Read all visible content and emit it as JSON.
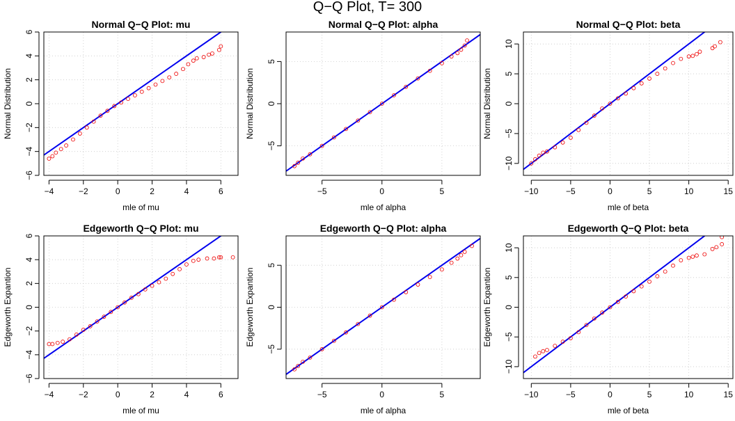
{
  "title": "Q−Q Plot, T= 300",
  "colors": {
    "points": "#ee0000",
    "reference_line": "#0000ee",
    "grid": "#c8c8c8"
  },
  "chart_data": [
    {
      "type": "scatter",
      "title": "Normal Q−Q Plot: mu",
      "xlabel": "mle of mu",
      "ylabel": "Normal Distribution",
      "xlim": [
        -4.3,
        7.0
      ],
      "ylim": [
        -6.0,
        6.0
      ],
      "xticks": [
        -4,
        -2,
        0,
        2,
        4,
        6
      ],
      "yticks": [
        -6,
        -4,
        -2,
        0,
        2,
        4,
        6
      ],
      "grid": true,
      "reference_line": {
        "slope": 1,
        "intercept": 0
      },
      "points": [
        [
          -4.0,
          -4.6
        ],
        [
          -3.8,
          -4.4
        ],
        [
          -3.6,
          -4.1
        ],
        [
          -3.3,
          -3.8
        ],
        [
          -3.0,
          -3.5
        ],
        [
          -2.6,
          -3.0
        ],
        [
          -2.2,
          -2.5
        ],
        [
          -1.8,
          -2.0
        ],
        [
          -1.4,
          -1.5
        ],
        [
          -1.0,
          -1.0
        ],
        [
          -0.6,
          -0.6
        ],
        [
          -0.2,
          -0.2
        ],
        [
          0.2,
          0.1
        ],
        [
          0.6,
          0.4
        ],
        [
          1.0,
          0.7
        ],
        [
          1.4,
          1.0
        ],
        [
          1.8,
          1.3
        ],
        [
          2.2,
          1.6
        ],
        [
          2.6,
          1.9
        ],
        [
          3.0,
          2.2
        ],
        [
          3.4,
          2.5
        ],
        [
          3.8,
          2.9
        ],
        [
          4.1,
          3.3
        ],
        [
          4.4,
          3.6
        ],
        [
          4.6,
          3.8
        ],
        [
          5.0,
          3.9
        ],
        [
          5.3,
          4.1
        ],
        [
          5.5,
          4.2
        ],
        [
          5.9,
          4.5
        ],
        [
          6.0,
          4.8
        ]
      ]
    },
    {
      "type": "scatter",
      "title": "Normal Q−Q Plot: alpha",
      "xlabel": "mle of alpha",
      "ylabel": "Normal Distribution",
      "xlim": [
        -8.0,
        8.2
      ],
      "ylim": [
        -8.5,
        8.5
      ],
      "xticks": [
        -5,
        0,
        5
      ],
      "yticks": [
        -5,
        0,
        5
      ],
      "grid": true,
      "reference_line": {
        "slope": 1,
        "intercept": 0
      },
      "points": [
        [
          -7.3,
          -7.4
        ],
        [
          -7.0,
          -7.0
        ],
        [
          -6.6,
          -6.5
        ],
        [
          -6.0,
          -6.0
        ],
        [
          -5.0,
          -5.0
        ],
        [
          -4.0,
          -4.0
        ],
        [
          -3.0,
          -3.0
        ],
        [
          -2.0,
          -2.0
        ],
        [
          -1.0,
          -1.0
        ],
        [
          0.0,
          0.0
        ],
        [
          1.0,
          1.0
        ],
        [
          2.0,
          2.0
        ],
        [
          3.0,
          3.0
        ],
        [
          4.0,
          3.9
        ],
        [
          5.0,
          4.8
        ],
        [
          5.8,
          5.6
        ],
        [
          6.3,
          6.0
        ],
        [
          6.6,
          6.4
        ],
        [
          6.9,
          6.9
        ],
        [
          7.1,
          7.5
        ]
      ]
    },
    {
      "type": "scatter",
      "title": "Normal Q−Q Plot: beta",
      "xlabel": "mle of beta",
      "ylabel": "Normal Distribution",
      "xlim": [
        -11.0,
        15.6
      ],
      "ylim": [
        -12.0,
        12.0
      ],
      "xticks": [
        -10,
        -5,
        0,
        5,
        10,
        15
      ],
      "yticks": [
        -10,
        -5,
        0,
        5,
        10
      ],
      "grid": true,
      "reference_line": {
        "slope": 1,
        "intercept": 0
      },
      "points": [
        [
          -10.0,
          -10.0
        ],
        [
          -9.5,
          -9.3
        ],
        [
          -9.0,
          -8.7
        ],
        [
          -8.5,
          -8.2
        ],
        [
          -8.0,
          -8.0
        ],
        [
          -7.0,
          -7.3
        ],
        [
          -6.0,
          -6.5
        ],
        [
          -5.0,
          -5.7
        ],
        [
          -4.0,
          -4.4
        ],
        [
          -3.0,
          -3.2
        ],
        [
          -2.0,
          -2.0
        ],
        [
          -1.0,
          -0.8
        ],
        [
          0.0,
          0.0
        ],
        [
          1.0,
          0.9
        ],
        [
          2.0,
          1.7
        ],
        [
          3.0,
          2.6
        ],
        [
          4.0,
          3.4
        ],
        [
          5.0,
          4.2
        ],
        [
          6.0,
          5.0
        ],
        [
          7.0,
          5.9
        ],
        [
          8.0,
          6.8
        ],
        [
          9.0,
          7.5
        ],
        [
          10.0,
          7.9
        ],
        [
          10.5,
          8.0
        ],
        [
          11.0,
          8.3
        ],
        [
          11.4,
          8.7
        ],
        [
          13.0,
          9.3
        ],
        [
          13.3,
          9.6
        ],
        [
          14.0,
          10.3
        ]
      ]
    },
    {
      "type": "scatter",
      "title": "Edgeworth Q−Q Plot: mu",
      "xlabel": "mle of mu",
      "ylabel": "Edgeworth Expantion",
      "xlim": [
        -4.3,
        7.0
      ],
      "ylim": [
        -6.0,
        6.0
      ],
      "xticks": [
        -4,
        -2,
        0,
        2,
        4,
        6
      ],
      "yticks": [
        -6,
        -4,
        -2,
        0,
        2,
        4,
        6
      ],
      "grid": true,
      "reference_line": {
        "slope": 1,
        "intercept": 0
      },
      "points": [
        [
          -4.0,
          -3.1
        ],
        [
          -3.8,
          -3.1
        ],
        [
          -3.5,
          -3.0
        ],
        [
          -3.2,
          -2.9
        ],
        [
          -2.8,
          -2.7
        ],
        [
          -2.4,
          -2.3
        ],
        [
          -2.0,
          -1.9
        ],
        [
          -1.6,
          -1.6
        ],
        [
          -1.2,
          -1.2
        ],
        [
          -0.8,
          -0.8
        ],
        [
          -0.4,
          -0.4
        ],
        [
          0.0,
          0.0
        ],
        [
          0.4,
          0.4
        ],
        [
          0.8,
          0.8
        ],
        [
          1.2,
          1.1
        ],
        [
          1.6,
          1.5
        ],
        [
          2.0,
          1.8
        ],
        [
          2.4,
          2.1
        ],
        [
          2.8,
          2.4
        ],
        [
          3.2,
          2.8
        ],
        [
          3.6,
          3.2
        ],
        [
          4.0,
          3.6
        ],
        [
          4.4,
          3.9
        ],
        [
          4.7,
          4.0
        ],
        [
          5.2,
          4.1
        ],
        [
          5.6,
          4.1
        ],
        [
          5.9,
          4.2
        ],
        [
          6.0,
          4.2
        ],
        [
          6.7,
          4.2
        ]
      ]
    },
    {
      "type": "scatter",
      "title": "Edgeworth Q−Q Plot: alpha",
      "xlabel": "mle of alpha",
      "ylabel": "Edgeworth Expantion",
      "xlim": [
        -8.0,
        8.2
      ],
      "ylim": [
        -8.5,
        8.5
      ],
      "xticks": [
        -5,
        0,
        5
      ],
      "yticks": [
        -5,
        0,
        5
      ],
      "grid": true,
      "reference_line": {
        "slope": 1,
        "intercept": 0
      },
      "points": [
        [
          -7.3,
          -7.4
        ],
        [
          -7.0,
          -7.0
        ],
        [
          -6.6,
          -6.5
        ],
        [
          -6.0,
          -6.0
        ],
        [
          -5.0,
          -5.0
        ],
        [
          -4.0,
          -4.0
        ],
        [
          -3.0,
          -3.0
        ],
        [
          -2.0,
          -2.0
        ],
        [
          -1.0,
          -1.0
        ],
        [
          0.0,
          0.0
        ],
        [
          1.0,
          0.9
        ],
        [
          2.0,
          1.8
        ],
        [
          3.0,
          2.7
        ],
        [
          4.0,
          3.6
        ],
        [
          5.0,
          4.5
        ],
        [
          5.8,
          5.3
        ],
        [
          6.3,
          5.8
        ],
        [
          6.6,
          6.2
        ],
        [
          6.9,
          6.6
        ],
        [
          7.5,
          7.3
        ]
      ]
    },
    {
      "type": "scatter",
      "title": "Edgeworth Q−Q Plot: beta",
      "xlabel": "mle of beta",
      "ylabel": "Edgeworth Expantion",
      "xlim": [
        -11.0,
        15.6
      ],
      "ylim": [
        -12.0,
        12.0
      ],
      "xticks": [
        -10,
        -5,
        0,
        5,
        10,
        15
      ],
      "yticks": [
        -10,
        -5,
        0,
        5,
        10
      ],
      "grid": true,
      "reference_line": {
        "slope": 1,
        "intercept": 0
      },
      "points": [
        [
          -9.5,
          -8.3
        ],
        [
          -9.0,
          -7.7
        ],
        [
          -8.5,
          -7.4
        ],
        [
          -8.0,
          -7.2
        ],
        [
          -7.0,
          -6.5
        ],
        [
          -6.0,
          -5.8
        ],
        [
          -5.0,
          -5.2
        ],
        [
          -4.0,
          -4.2
        ],
        [
          -3.0,
          -3.0
        ],
        [
          -2.0,
          -1.9
        ],
        [
          -1.0,
          -0.9
        ],
        [
          0.0,
          0.0
        ],
        [
          1.0,
          0.9
        ],
        [
          2.0,
          1.8
        ],
        [
          3.0,
          2.7
        ],
        [
          4.0,
          3.5
        ],
        [
          5.0,
          4.3
        ],
        [
          6.0,
          5.2
        ],
        [
          7.0,
          6.0
        ],
        [
          8.0,
          7.0
        ],
        [
          9.0,
          7.9
        ],
        [
          10.0,
          8.3
        ],
        [
          10.5,
          8.5
        ],
        [
          11.0,
          8.7
        ],
        [
          12.0,
          8.9
        ],
        [
          13.0,
          9.8
        ],
        [
          13.5,
          10.1
        ],
        [
          14.2,
          10.6
        ],
        [
          14.2,
          11.8
        ]
      ]
    }
  ]
}
